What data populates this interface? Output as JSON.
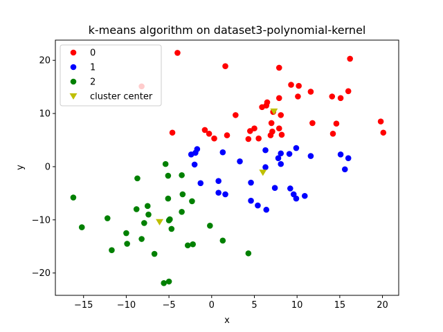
{
  "chart_data": {
    "type": "scatter",
    "title": "k-means algorithm on dataset3-polynomial-kernel",
    "xlabel": "x",
    "ylabel": "y",
    "xlim": [
      -18.3,
      21.9
    ],
    "ylim": [
      -24.2,
      23.8
    ],
    "xticks": [
      -15,
      -10,
      -5,
      0,
      5,
      10,
      15,
      20
    ],
    "yticks": [
      -20,
      -10,
      0,
      10,
      20
    ],
    "grid": false,
    "legend_position": "top-left",
    "series": [
      {
        "name": "0",
        "color": "#ff0000",
        "marker": "circle",
        "points": [
          [
            -4.0,
            21.4
          ],
          [
            1.6,
            18.9
          ],
          [
            -8.2,
            15.1
          ],
          [
            7.9,
            18.6
          ],
          [
            16.2,
            20.3
          ],
          [
            9.3,
            15.4
          ],
          [
            10.2,
            15.2
          ],
          [
            11.6,
            14.1
          ],
          [
            14.1,
            13.2
          ],
          [
            15.1,
            12.9
          ],
          [
            16.0,
            14.2
          ],
          [
            10.1,
            13.2
          ],
          [
            7.9,
            12.9
          ],
          [
            6.5,
            12.1
          ],
          [
            5.9,
            11.2
          ],
          [
            6.4,
            11.5
          ],
          [
            7.2,
            10.3
          ],
          [
            8.1,
            9.7
          ],
          [
            2.8,
            9.7
          ],
          [
            7.0,
            8.2
          ],
          [
            11.8,
            8.2
          ],
          [
            14.6,
            8.1
          ],
          [
            19.8,
            8.5
          ],
          [
            -0.8,
            6.9
          ],
          [
            -0.3,
            6.2
          ],
          [
            4.5,
            6.7
          ],
          [
            5.0,
            7.2
          ],
          [
            7.1,
            6.6
          ],
          [
            7.9,
            7.2
          ],
          [
            6.9,
            5.9
          ],
          [
            8.2,
            6.0
          ],
          [
            5.5,
            5.3
          ],
          [
            4.3,
            5.2
          ],
          [
            1.8,
            5.9
          ],
          [
            0.3,
            5.3
          ],
          [
            14.2,
            6.2
          ],
          [
            20.1,
            6.4
          ],
          [
            -4.6,
            6.4
          ]
        ]
      },
      {
        "name": "1",
        "color": "#0000ff",
        "marker": "circle",
        "points": [
          [
            -1.7,
            3.3
          ],
          [
            -1.9,
            2.6
          ],
          [
            -2.4,
            2.3
          ],
          [
            1.3,
            2.7
          ],
          [
            6.3,
            3.1
          ],
          [
            8.1,
            2.5
          ],
          [
            9.1,
            2.4
          ],
          [
            9.9,
            3.5
          ],
          [
            7.8,
            1.6
          ],
          [
            11.6,
            2.0
          ],
          [
            15.1,
            2.3
          ],
          [
            16.0,
            1.6
          ],
          [
            3.3,
            1.0
          ],
          [
            8.1,
            0.5
          ],
          [
            6.3,
            -0.1
          ],
          [
            -2.0,
            0.4
          ],
          [
            15.6,
            -0.5
          ],
          [
            0.8,
            -2.7
          ],
          [
            -1.3,
            -3.1
          ],
          [
            4.6,
            -3.0
          ],
          [
            7.4,
            -4.0
          ],
          [
            9.2,
            -4.1
          ],
          [
            9.6,
            -5.2
          ],
          [
            9.9,
            -6.0
          ],
          [
            10.9,
            -5.5
          ],
          [
            0.8,
            -4.9
          ],
          [
            1.6,
            -5.2
          ],
          [
            4.6,
            -6.4
          ],
          [
            5.4,
            -7.3
          ],
          [
            6.4,
            -8.1
          ]
        ]
      },
      {
        "name": "2",
        "color": "#008000",
        "marker": "circle",
        "points": [
          [
            -5.4,
            0.5
          ],
          [
            -3.5,
            -1.6
          ],
          [
            -5.1,
            -1.7
          ],
          [
            -8.7,
            -2.2
          ],
          [
            -16.2,
            -5.8
          ],
          [
            -3.4,
            -5.2
          ],
          [
            -5.1,
            -6.0
          ],
          [
            -2.3,
            -6.5
          ],
          [
            -7.5,
            -7.4
          ],
          [
            -8.8,
            -8.0
          ],
          [
            -3.5,
            -8.5
          ],
          [
            -7.4,
            -9.0
          ],
          [
            -12.2,
            -9.7
          ],
          [
            -5.0,
            -10.1
          ],
          [
            -4.9,
            -9.9
          ],
          [
            -7.9,
            -10.6
          ],
          [
            -15.2,
            -11.4
          ],
          [
            -0.2,
            -11.1
          ],
          [
            -4.7,
            -11.7
          ],
          [
            -10.0,
            -12.5
          ],
          [
            -8.2,
            -13.6
          ],
          [
            1.3,
            -13.9
          ],
          [
            -9.9,
            -14.5
          ],
          [
            -2.2,
            -14.6
          ],
          [
            -2.8,
            -14.8
          ],
          [
            -11.7,
            -15.7
          ],
          [
            -6.7,
            -16.4
          ],
          [
            4.3,
            -16.3
          ],
          [
            -5.6,
            -21.9
          ],
          [
            -5.0,
            -21.6
          ]
        ]
      },
      {
        "name": "cluster center",
        "color": "#bfbf00",
        "marker": "triangle-down",
        "points": [
          [
            7.3,
            10.4
          ],
          [
            6.0,
            -1.1
          ],
          [
            -6.1,
            -10.4
          ]
        ]
      }
    ]
  }
}
